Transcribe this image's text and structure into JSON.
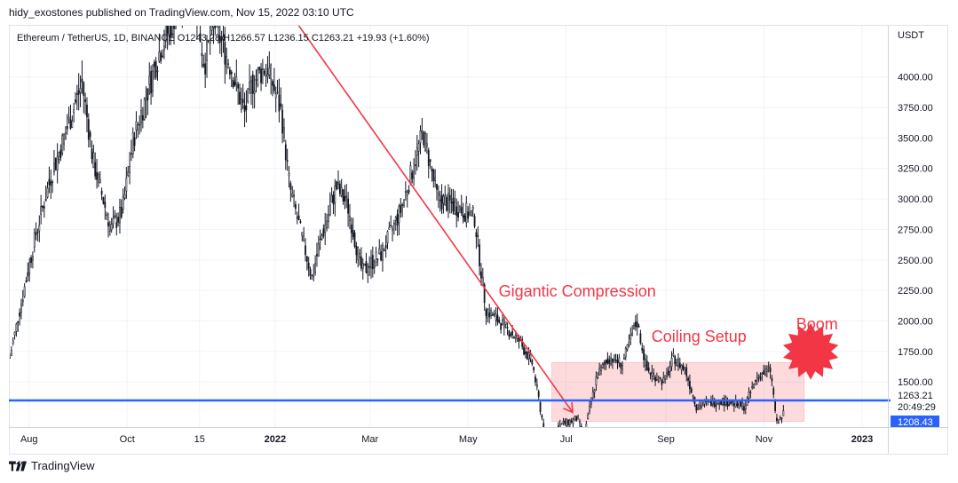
{
  "header": {
    "publisher_line": "hidy_exostones published on TradingView.com, Nov 15, 2022 03:10 UTC"
  },
  "footer": {
    "brand": "TradingView"
  },
  "chart_data": {
    "type": "candlestick",
    "symbol_line": "Ethereum / TetherUS, 1D, BINANCE  O1243.28 H1266.57 L1236.15 C1263.21 +19.93 (+1.60%)",
    "currency": "USDT",
    "ylim": [
      1130,
      4420
    ],
    "y_ticks": [
      "4000.00",
      "3750.00",
      "3500.00",
      "3250.00",
      "3000.00",
      "2750.00",
      "2500.00",
      "2250.00",
      "2000.00",
      "1750.00",
      "1500.00"
    ],
    "x_ticks": [
      "Aug",
      "Oct",
      "15",
      "2022",
      "Mar",
      "May",
      "Jul",
      "Sep",
      "Nov",
      "2023"
    ],
    "last_price": "1263.21",
    "countdown": "20:49:29",
    "support_level": "1208.43",
    "support_color": "#2962ff",
    "price_path": [
      [
        "2021-07-20",
        1700
      ],
      [
        "2021-08-05",
        2700
      ],
      [
        "2021-08-15",
        3200
      ],
      [
        "2021-09-03",
        3950
      ],
      [
        "2021-09-10",
        3300
      ],
      [
        "2021-09-21",
        2750
      ],
      [
        "2021-09-28",
        2900
      ],
      [
        "2021-10-05",
        3500
      ],
      [
        "2021-10-21",
        4200
      ],
      [
        "2021-11-10",
        4850
      ],
      [
        "2021-11-18",
        4100
      ],
      [
        "2021-11-24",
        4450
      ],
      [
        "2021-12-04",
        4100
      ],
      [
        "2021-12-13",
        3700
      ],
      [
        "2021-12-18",
        3950
      ],
      [
        "2021-12-27",
        4100
      ],
      [
        "2022-01-05",
        3700
      ],
      [
        "2022-01-10",
        3100
      ],
      [
        "2022-01-24",
        2350
      ],
      [
        "2022-01-28",
        2600
      ],
      [
        "2022-02-08",
        3100
      ],
      [
        "2022-02-15",
        2950
      ],
      [
        "2022-02-24",
        2400
      ],
      [
        "2022-03-08",
        2550
      ],
      [
        "2022-03-20",
        2900
      ],
      [
        "2022-04-03",
        3550
      ],
      [
        "2022-04-12",
        3000
      ],
      [
        "2022-04-22",
        2950
      ],
      [
        "2022-05-05",
        2850
      ],
      [
        "2022-05-12",
        2100
      ],
      [
        "2022-05-20",
        2000
      ],
      [
        "2022-06-01",
        1850
      ],
      [
        "2022-06-10",
        1650
      ],
      [
        "2022-06-18",
        1050
      ],
      [
        "2022-06-28",
        1150
      ],
      [
        "2022-07-08",
        1200
      ],
      [
        "2022-07-12",
        1050
      ],
      [
        "2022-07-20",
        1550
      ],
      [
        "2022-07-28",
        1700
      ],
      [
        "2022-08-05",
        1650
      ],
      [
        "2022-08-14",
        2000
      ],
      [
        "2022-08-20",
        1600
      ],
      [
        "2022-08-31",
        1500
      ],
      [
        "2022-09-06",
        1700
      ],
      [
        "2022-09-13",
        1600
      ],
      [
        "2022-09-20",
        1300
      ],
      [
        "2022-10-05",
        1350
      ],
      [
        "2022-10-20",
        1300
      ],
      [
        "2022-10-28",
        1550
      ],
      [
        "2022-11-05",
        1600
      ],
      [
        "2022-11-09",
        1150
      ],
      [
        "2022-11-14",
        1263
      ]
    ],
    "annotations": {
      "trend_line": {
        "from": [
          "2022-01-05",
          4620
        ],
        "to": [
          "2022-07-05",
          1250
        ],
        "color": "#f23645"
      },
      "range_box": {
        "from_date": "2022-06-22",
        "to_date": "2022-11-26",
        "top": 1660,
        "bottom": 1175,
        "color": "rgba(242,54,69,0.18)"
      },
      "labels": [
        {
          "text": "Gigantic Compression",
          "date": "2022-05-20",
          "price": 2200,
          "color": "#f23645"
        },
        {
          "text": "Coiling Setup",
          "date": "2022-08-23",
          "price": 1830,
          "color": "#f23645"
        },
        {
          "text": "Boom",
          "date": "2022-11-21",
          "price": 1930,
          "color": "#f23645"
        }
      ],
      "burst": {
        "date": "2022-11-30",
        "price": 1750,
        "color": "#f23645"
      }
    }
  }
}
